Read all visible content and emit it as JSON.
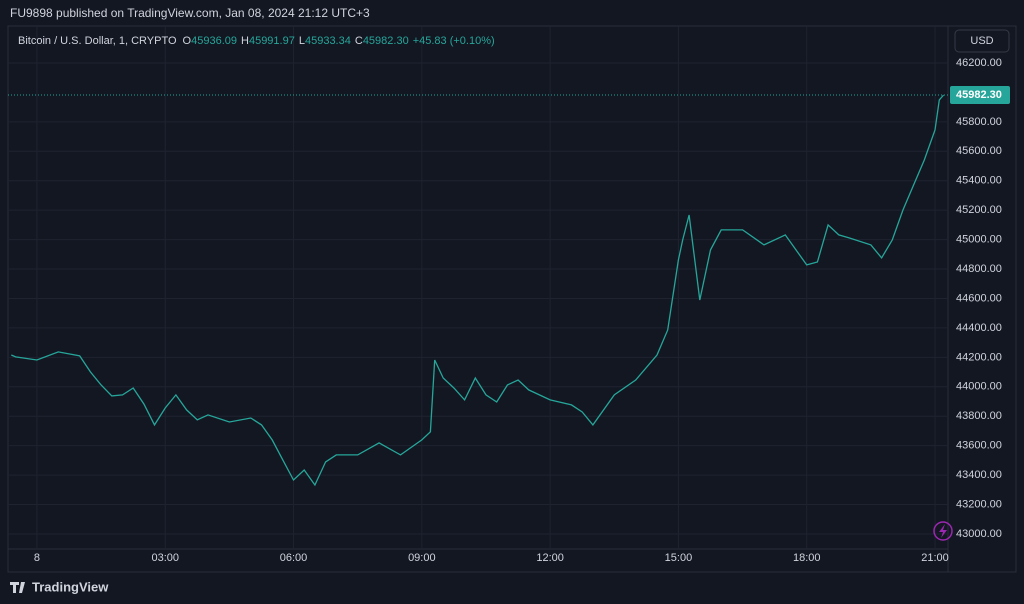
{
  "header": {
    "published": "FU9898 published on TradingView.com, Jan 08, 2024 21:12 UTC+3"
  },
  "legend": {
    "symbol": "Bitcoin / U.S. Dollar, 1, CRYPTO",
    "open_label": "O",
    "open": "45936.09",
    "high_label": "H",
    "high": "45991.97",
    "low_label": "L",
    "low": "45933.34",
    "close_label": "C",
    "close": "45982.30",
    "change": "+45.83 (+0.10%)"
  },
  "currency_button": "USD",
  "footer": {
    "brand": "TradingView"
  },
  "chart_data": {
    "type": "line",
    "x": [
      -0.6,
      -0.5,
      0,
      0.5,
      1.0,
      1.25,
      1.5,
      1.75,
      2.0,
      2.25,
      2.5,
      2.75,
      3.0,
      3.25,
      3.5,
      3.75,
      4.0,
      4.5,
      5.0,
      5.25,
      5.5,
      5.75,
      6.0,
      6.25,
      6.5,
      6.75,
      7.0,
      7.5,
      8.0,
      8.5,
      9.0,
      9.2,
      9.3,
      9.5,
      9.75,
      10.0,
      10.25,
      10.5,
      10.75,
      11.0,
      11.25,
      11.5,
      12.0,
      12.5,
      12.75,
      13.0,
      13.5,
      14.0,
      14.5,
      14.75,
      15.0,
      15.1,
      15.25,
      15.5,
      15.75,
      16.0,
      16.5,
      17.0,
      17.5,
      18.0,
      18.25,
      18.5,
      18.75,
      19.0,
      19.5,
      19.75,
      20.0,
      20.25,
      20.5,
      20.75,
      21.0,
      21.1,
      21.2
    ],
    "series": [
      {
        "name": "Bitcoin / U.S. Dollar",
        "color": "#26a69a",
        "values": [
          44216,
          44203,
          44182,
          44237,
          44210,
          44101,
          44012,
          43938,
          43945,
          43992,
          43883,
          43741,
          43856,
          43945,
          43843,
          43775,
          43809,
          43761,
          43788,
          43741,
          43639,
          43503,
          43367,
          43435,
          43333,
          43490,
          43537,
          43537,
          43619,
          43537,
          43639,
          43694,
          44182,
          44060,
          43992,
          43911,
          44060,
          43945,
          43897,
          44012,
          44046,
          43979,
          43911,
          43877,
          43829,
          43741,
          43945,
          44046,
          44216,
          44386,
          44862,
          44998,
          45167,
          44590,
          44930,
          45066,
          45066,
          44964,
          45032,
          44828,
          44848,
          45100,
          45032,
          45011,
          44964,
          44876,
          44998,
          45202,
          45371,
          45541,
          45745,
          45949,
          45982.3
        ]
      }
    ],
    "xlim": [
      -0.63,
      21.28
    ],
    "xticks": [
      {
        "value": 0,
        "label": "8"
      },
      {
        "value": 3,
        "label": "03:00"
      },
      {
        "value": 6,
        "label": "06:00"
      },
      {
        "value": 9,
        "label": "09:00"
      },
      {
        "value": 12,
        "label": "12:00"
      },
      {
        "value": 15,
        "label": "15:00"
      },
      {
        "value": 18,
        "label": "18:00"
      },
      {
        "value": 21,
        "label": "21:00"
      }
    ],
    "ylim": [
      42900,
      46420
    ],
    "yticks": [
      {
        "value": 43000,
        "label": "43000.00"
      },
      {
        "value": 43200,
        "label": "43200.00"
      },
      {
        "value": 43400,
        "label": "43400.00"
      },
      {
        "value": 43600,
        "label": "43600.00"
      },
      {
        "value": 43800,
        "label": "43800.00"
      },
      {
        "value": 44000,
        "label": "44000.00"
      },
      {
        "value": 44200,
        "label": "44200.00"
      },
      {
        "value": 44400,
        "label": "44400.00"
      },
      {
        "value": 44600,
        "label": "44600.00"
      },
      {
        "value": 44800,
        "label": "44800.00"
      },
      {
        "value": 45000,
        "label": "45000.00"
      },
      {
        "value": 45200,
        "label": "45200.00"
      },
      {
        "value": 45400,
        "label": "45400.00"
      },
      {
        "value": 45600,
        "label": "45600.00"
      },
      {
        "value": 45800,
        "label": "45800.00"
      },
      {
        "value": 46200,
        "label": "46200.00"
      }
    ],
    "last_price": {
      "value": 45982.3,
      "label": "45982.30"
    },
    "grid": true
  }
}
